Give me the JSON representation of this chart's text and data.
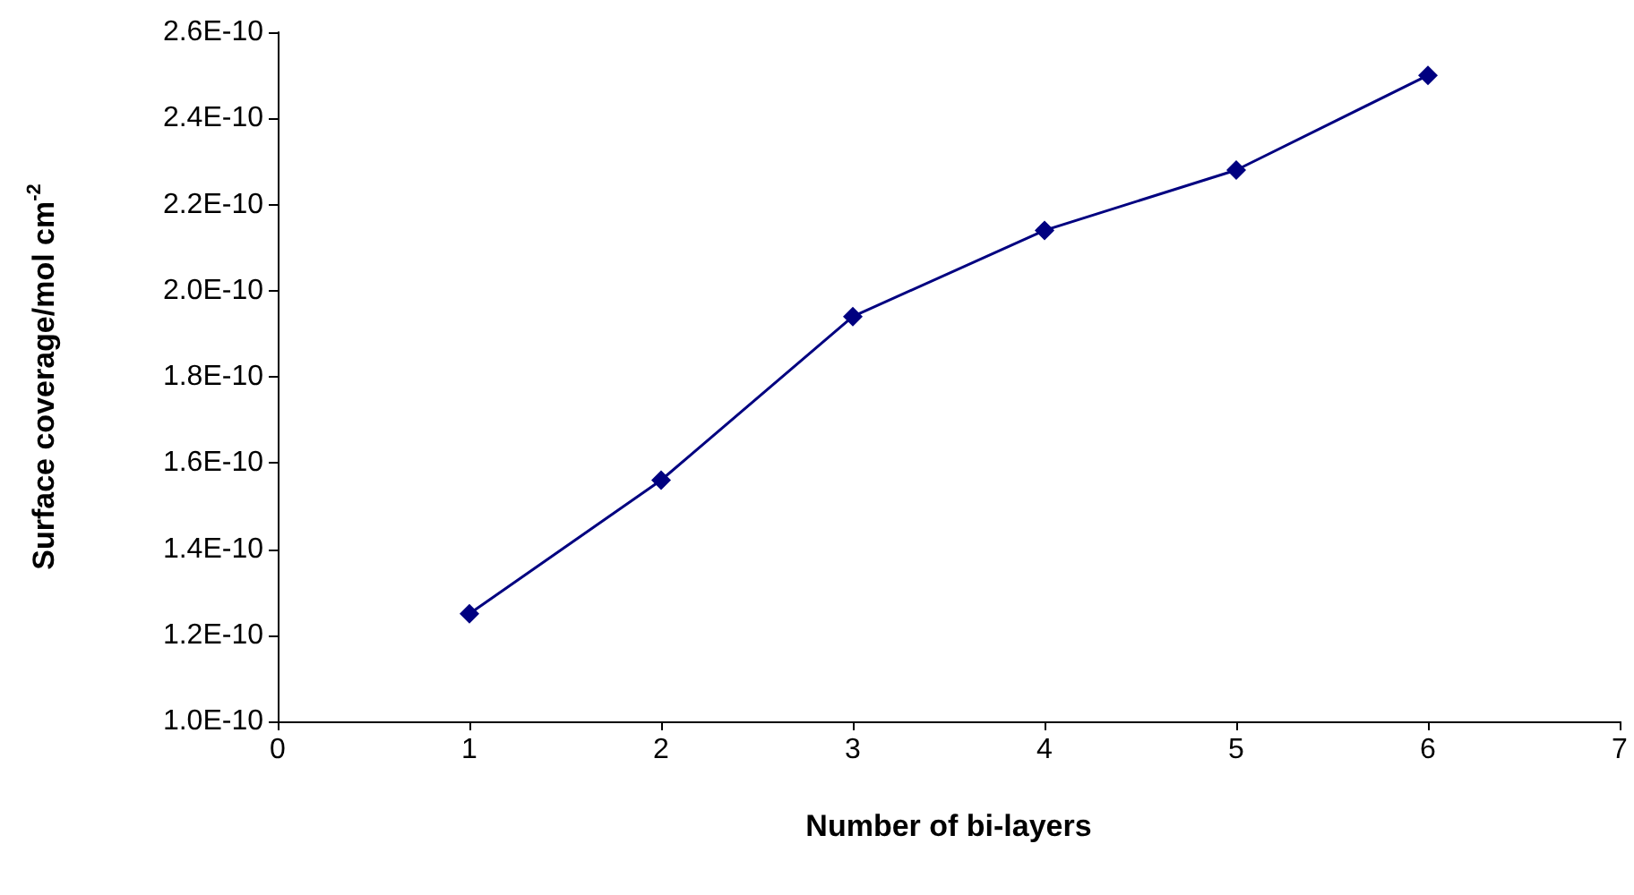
{
  "chart_data": {
    "type": "line",
    "xlabel": "Number of bi-layers",
    "ylabel": "Surface coverage/mol cm$^{-2}$",
    "x": [
      1,
      2,
      3,
      4,
      5,
      6
    ],
    "series": [
      {
        "color": "#000080",
        "values": [
          1.25e-10,
          1.56e-10,
          1.94e-10,
          2.14e-10,
          2.28e-10,
          2.5e-10
        ]
      }
    ],
    "xlim": [
      0,
      7
    ],
    "xticks": [
      0,
      1,
      2,
      3,
      4,
      5,
      6,
      7
    ],
    "ylim": [
      1e-10,
      2.6e-10
    ],
    "yticks": [
      {
        "value": 1e-10,
        "label": "1.0E-10"
      },
      {
        "value": 1.2e-10,
        "label": "1.2E-10"
      },
      {
        "value": 1.4e-10,
        "label": "1.4E-10"
      },
      {
        "value": 1.6e-10,
        "label": "1.6E-10"
      },
      {
        "value": 1.8e-10,
        "label": "1.8E-10"
      },
      {
        "value": 2e-10,
        "label": "2.0E-10"
      },
      {
        "value": 2.2e-10,
        "label": "2.2E-10"
      },
      {
        "value": 2.4e-10,
        "label": "2.4E-10"
      },
      {
        "value": 2.6e-10,
        "label": "2.6E-10"
      }
    ],
    "grid": false,
    "marker": "diamond",
    "line_style": "solid"
  }
}
